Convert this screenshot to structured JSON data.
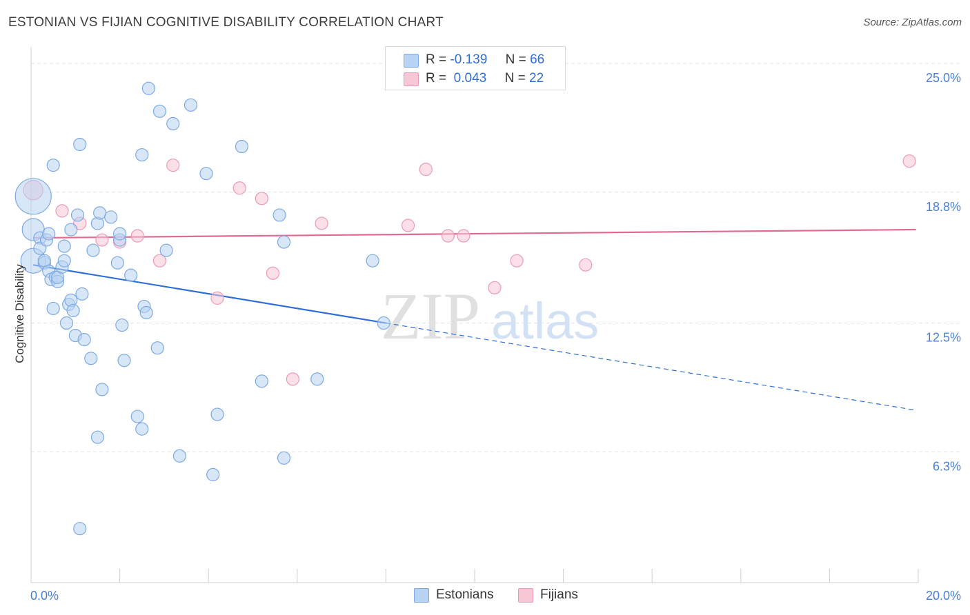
{
  "header": {
    "title": "ESTONIAN VS FIJIAN COGNITIVE DISABILITY CORRELATION CHART",
    "source": "Source: ZipAtlas.com"
  },
  "legend": {
    "rows": [
      {
        "r_label": "R =",
        "r_value": "-0.139",
        "n_label": "N =",
        "n_value": "66"
      },
      {
        "r_label": "R =",
        "r_value": "0.043",
        "n_label": "N =",
        "n_value": "22"
      }
    ],
    "bottom": [
      "Estonians",
      "Fijians"
    ]
  },
  "watermark": {
    "zip": "ZIP",
    "atlas": "atlas"
  },
  "colors": {
    "estonian_fill": "#b8d3f3",
    "estonian_stroke": "#7ea9e0",
    "estonian_line": "#2f6fd4",
    "fijian_fill": "#f8c7d6",
    "fijian_stroke": "#eb9ab4",
    "fijian_line": "#e06a93",
    "tick_text": "#4a7fd0",
    "grid": "#e3e3e3"
  },
  "chart_data": {
    "type": "scatter",
    "title": "ESTONIAN VS FIJIAN COGNITIVE DISABILITY CORRELATION CHART",
    "xlabel": "",
    "ylabel": "Cognitive Disability",
    "xlim": [
      0,
      20
    ],
    "ylim": [
      0,
      25.5
    ],
    "x_tick_labels": [
      {
        "x": 0,
        "label": "0.0%"
      },
      {
        "x": 20,
        "label": "20.0%"
      }
    ],
    "y_tick_labels": [
      {
        "y": 25.0,
        "label": "25.0%"
      },
      {
        "y": 18.8,
        "label": "18.8%"
      },
      {
        "y": 12.5,
        "label": "12.5%"
      },
      {
        "y": 6.3,
        "label": "6.3%"
      }
    ],
    "series": [
      {
        "name": "Estonians",
        "r": -0.139,
        "n": 66,
        "trend": {
          "x0": 0.05,
          "y0": 15.3,
          "x1": 8.0,
          "y1": 12.5,
          "dash_to_x": 19.95,
          "dash_to_y": 8.3
        },
        "points": [
          [
            0.05,
            18.6,
            26
          ],
          [
            0.05,
            15.5,
            18
          ],
          [
            0.05,
            17.0,
            16
          ],
          [
            0.2,
            16.6,
            9
          ],
          [
            0.2,
            16.1,
            9
          ],
          [
            0.3,
            15.4,
            9
          ],
          [
            0.3,
            15.5,
            9
          ],
          [
            0.35,
            16.5,
            9
          ],
          [
            0.4,
            16.8,
            9
          ],
          [
            0.4,
            15.0,
            9
          ],
          [
            0.45,
            14.6,
            9
          ],
          [
            0.5,
            20.1,
            9
          ],
          [
            0.5,
            13.2,
            9
          ],
          [
            0.55,
            14.7,
            9
          ],
          [
            0.6,
            14.5,
            9
          ],
          [
            0.6,
            14.7,
            9
          ],
          [
            0.7,
            15.2,
            9
          ],
          [
            0.75,
            15.5,
            9
          ],
          [
            0.75,
            16.2,
            9
          ],
          [
            0.8,
            12.5,
            9
          ],
          [
            0.85,
            13.4,
            9
          ],
          [
            0.9,
            13.6,
            9
          ],
          [
            0.9,
            17.0,
            9
          ],
          [
            0.95,
            13.1,
            9
          ],
          [
            1.0,
            11.9,
            9
          ],
          [
            1.05,
            17.7,
            9
          ],
          [
            1.1,
            21.1,
            9
          ],
          [
            1.15,
            13.9,
            9
          ],
          [
            1.2,
            11.7,
            9
          ],
          [
            1.35,
            10.8,
            9
          ],
          [
            1.4,
            16.0,
            9
          ],
          [
            1.5,
            7.0,
            9
          ],
          [
            1.5,
            17.3,
            9
          ],
          [
            1.55,
            17.8,
            9
          ],
          [
            1.6,
            9.3,
            9
          ],
          [
            1.8,
            17.6,
            9
          ],
          [
            1.95,
            15.4,
            9
          ],
          [
            2.0,
            16.5,
            9
          ],
          [
            2.0,
            16.8,
            9
          ],
          [
            2.05,
            12.4,
            9
          ],
          [
            2.1,
            10.7,
            9
          ],
          [
            2.25,
            14.8,
            9
          ],
          [
            2.4,
            8.0,
            9
          ],
          [
            2.5,
            20.6,
            9
          ],
          [
            2.5,
            7.4,
            9
          ],
          [
            2.55,
            13.3,
            9
          ],
          [
            2.6,
            13.0,
            9
          ],
          [
            2.65,
            23.8,
            9
          ],
          [
            2.85,
            11.3,
            9
          ],
          [
            2.9,
            22.7,
            9
          ],
          [
            3.05,
            16.0,
            9
          ],
          [
            3.2,
            22.1,
            9
          ],
          [
            3.35,
            6.1,
            9
          ],
          [
            3.6,
            23.0,
            9
          ],
          [
            3.95,
            19.7,
            9
          ],
          [
            4.1,
            5.2,
            9
          ],
          [
            4.2,
            8.1,
            9
          ],
          [
            4.75,
            21.0,
            9
          ],
          [
            5.2,
            9.7,
            9
          ],
          [
            5.6,
            17.7,
            9
          ],
          [
            5.7,
            16.4,
            9
          ],
          [
            5.7,
            6.0,
            9
          ],
          [
            6.45,
            9.8,
            9
          ],
          [
            7.7,
            15.5,
            9
          ],
          [
            7.95,
            12.5,
            9
          ],
          [
            1.1,
            2.6,
            9
          ]
        ]
      },
      {
        "name": "Fijians",
        "r": 0.043,
        "n": 22,
        "trend": {
          "x0": 0.05,
          "y0": 16.6,
          "x1": 19.95,
          "y1": 17.0
        },
        "points": [
          [
            0.05,
            18.9,
            14
          ],
          [
            0.7,
            17.9,
            9
          ],
          [
            1.1,
            17.3,
            9
          ],
          [
            1.6,
            16.5,
            9
          ],
          [
            2.0,
            16.4,
            9
          ],
          [
            2.4,
            16.7,
            9
          ],
          [
            2.9,
            15.5,
            9
          ],
          [
            3.2,
            20.1,
            9
          ],
          [
            4.2,
            13.7,
            9
          ],
          [
            4.7,
            19.0,
            9
          ],
          [
            5.2,
            18.5,
            9
          ],
          [
            5.45,
            14.9,
            9
          ],
          [
            5.9,
            9.8,
            9
          ],
          [
            6.55,
            17.3,
            9
          ],
          [
            8.5,
            17.2,
            9
          ],
          [
            8.9,
            19.9,
            9
          ],
          [
            9.4,
            16.7,
            9
          ],
          [
            9.75,
            16.7,
            9
          ],
          [
            10.45,
            14.2,
            9
          ],
          [
            10.95,
            15.5,
            9
          ],
          [
            12.5,
            15.3,
            9
          ],
          [
            19.8,
            20.3,
            9
          ]
        ]
      }
    ]
  }
}
